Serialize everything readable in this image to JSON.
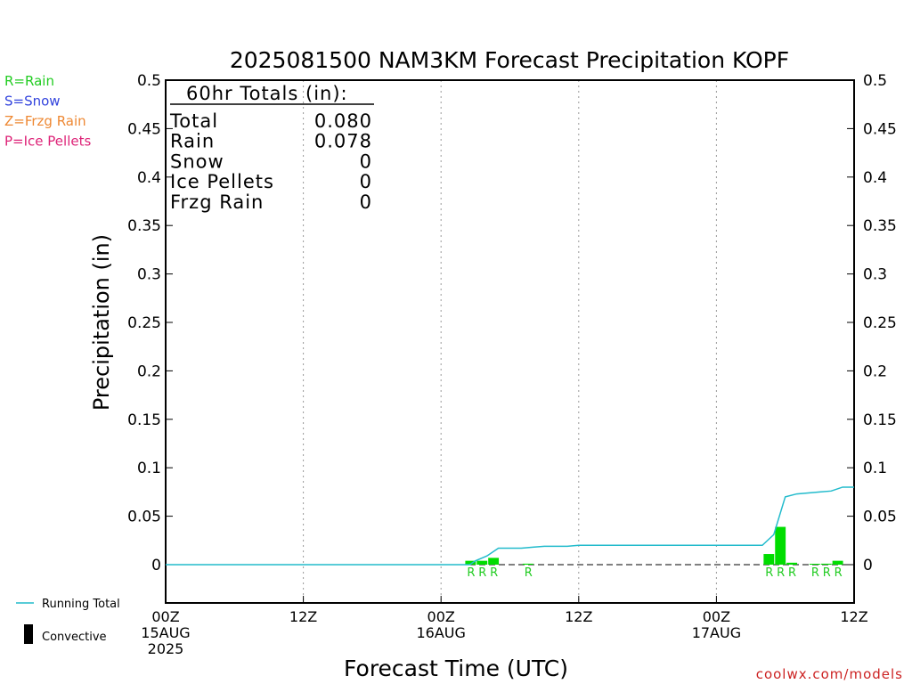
{
  "legend_types": [
    {
      "label": "R=Rain",
      "color": "#22cc22"
    },
    {
      "label": "S=Snow",
      "color": "#3344dd"
    },
    {
      "label": "Z=Frzg Rain",
      "color": "#ee8833"
    },
    {
      "label": "P=Ice Pellets",
      "color": "#dd2277"
    }
  ],
  "legend_bottom": {
    "running_total": "Running Total",
    "convective": "Convective",
    "running_total_color": "#22bbcc"
  },
  "totals_box": {
    "title": "60hr Totals (in):",
    "rows": [
      {
        "label": "Total",
        "value": "0.080"
      },
      {
        "label": "Rain",
        "value": "0.078"
      },
      {
        "label": "Snow",
        "value": "0"
      },
      {
        "label": "Ice Pellets",
        "value": "0"
      },
      {
        "label": "Frzg Rain",
        "value": "0"
      }
    ]
  },
  "credit": "coolwx.com/models",
  "chart_data": {
    "type": "bar",
    "title": "2025081500 NAM3KM Forecast Precipitation KOPF",
    "xlabel": "Forecast Time (UTC)",
    "ylabel": "Precipitation (in)",
    "xlim": [
      0,
      60
    ],
    "ylim": [
      0,
      0.5
    ],
    "yticks": [
      "0",
      "0.05",
      "0.1",
      "0.15",
      "0.2",
      "0.25",
      "0.3",
      "0.35",
      "0.4",
      "0.45",
      "0.5"
    ],
    "yticks_right": [
      "0",
      "0.05",
      "0.1",
      "0.15",
      "0.2",
      "0.25",
      "0.3",
      "0.35",
      "0.4",
      "0.45",
      "0.5"
    ],
    "xticks": [
      {
        "hour": 0,
        "lines": [
          "00Z",
          "15AUG",
          "2025"
        ]
      },
      {
        "hour": 12,
        "lines": [
          "12Z"
        ]
      },
      {
        "hour": 24,
        "lines": [
          "00Z",
          "16AUG"
        ]
      },
      {
        "hour": 36,
        "lines": [
          "12Z"
        ]
      },
      {
        "hour": 48,
        "lines": [
          "00Z",
          "17AUG"
        ]
      },
      {
        "hour": 60,
        "lines": [
          "12Z"
        ]
      }
    ],
    "grid": "vertical-dotted",
    "colors": {
      "bar": "#00dd00",
      "running_total": "#22bbcc",
      "type_label": "#22cc22"
    },
    "series": [
      {
        "name": "Rain",
        "bars": [
          {
            "hour": 27,
            "value": 0.004,
            "type": "R"
          },
          {
            "hour": 28,
            "value": 0.004,
            "type": "R"
          },
          {
            "hour": 29,
            "value": 0.007,
            "type": "R"
          },
          {
            "hour": 32,
            "value": 0.001,
            "type": "R"
          },
          {
            "hour": 53,
            "value": 0.011,
            "type": "R"
          },
          {
            "hour": 54,
            "value": 0.039,
            "type": "R"
          },
          {
            "hour": 55,
            "value": 0.002,
            "type": "R"
          },
          {
            "hour": 57,
            "value": 0.0005,
            "type": "R"
          },
          {
            "hour": 58,
            "value": 0.001,
            "type": "R"
          },
          {
            "hour": 59,
            "value": 0.004,
            "type": "R"
          }
        ]
      },
      {
        "name": "Running Total",
        "x": [
          0,
          26.5,
          27,
          28,
          29,
          30,
          31,
          32,
          33,
          34,
          35,
          36,
          52,
          53,
          54,
          55,
          56,
          57,
          58,
          59,
          60
        ],
        "values": [
          0,
          0,
          0.004,
          0.009,
          0.017,
          0.017,
          0.017,
          0.018,
          0.019,
          0.019,
          0.019,
          0.02,
          0.02,
          0.031,
          0.07,
          0.073,
          0.074,
          0.075,
          0.076,
          0.08,
          0.08
        ]
      }
    ]
  }
}
